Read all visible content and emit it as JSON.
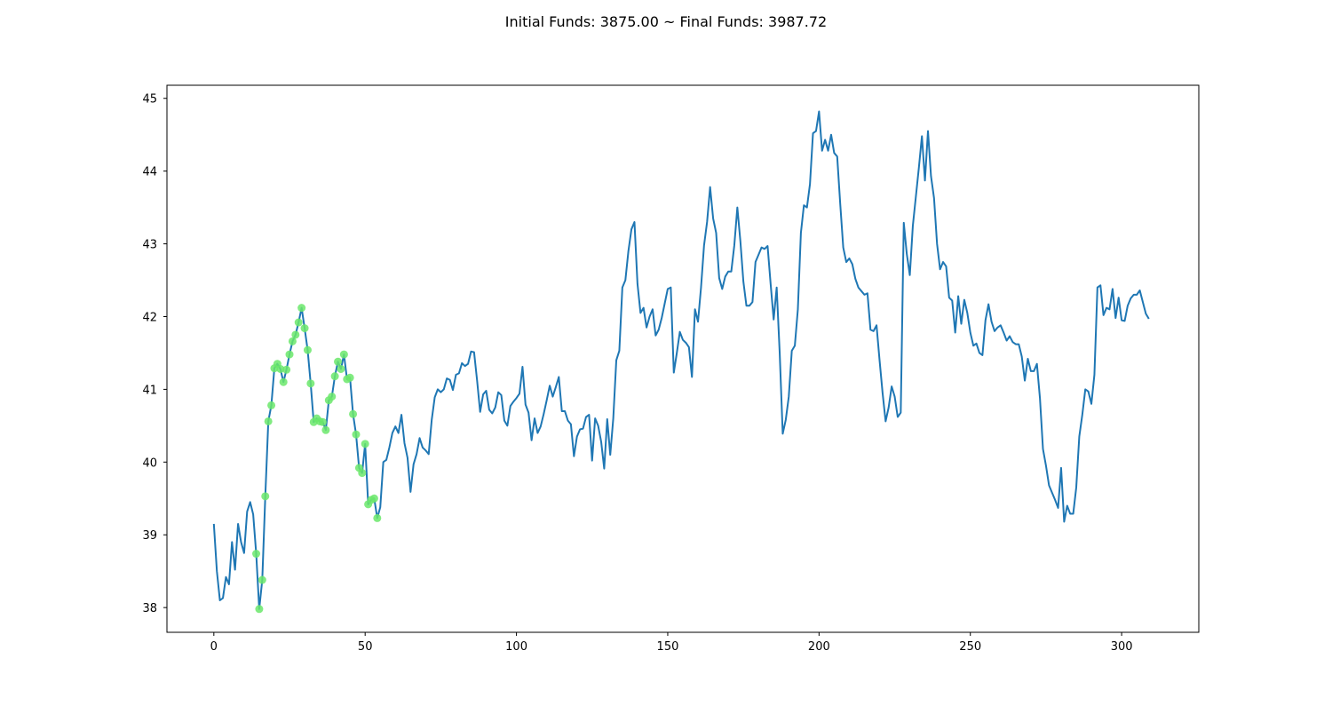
{
  "chart_data": {
    "type": "line",
    "title": "Initial Funds: 3875.00 ~ Final Funds: 3987.72",
    "xlabel": "",
    "ylabel": "",
    "xlim": [
      -15.5,
      325.5
    ],
    "ylim": [
      37.66,
      45.18
    ],
    "xticks": [
      0,
      50,
      100,
      150,
      200,
      250,
      300
    ],
    "yticks": [
      38,
      39,
      40,
      41,
      42,
      43,
      44,
      45
    ],
    "grid": false,
    "legend": "none",
    "series": [
      {
        "color": "#1f77b4",
        "x_start": 0,
        "values": [
          39.15,
          38.5,
          38.1,
          38.13,
          38.42,
          38.32,
          38.9,
          38.52,
          39.15,
          38.9,
          38.75,
          39.32,
          39.45,
          39.28,
          38.74,
          37.98,
          38.38,
          39.53,
          40.56,
          40.78,
          41.29,
          41.35,
          41.28,
          41.1,
          41.27,
          41.48,
          41.66,
          41.75,
          41.92,
          42.12,
          41.84,
          41.54,
          41.08,
          40.55,
          40.6,
          40.56,
          40.55,
          40.44,
          40.85,
          40.9,
          41.18,
          41.38,
          41.28,
          41.48,
          41.14,
          41.16,
          40.66,
          40.38,
          39.92,
          39.85,
          40.25,
          39.42,
          39.48,
          39.5,
          39.23,
          39.38,
          40.0,
          40.03,
          40.2,
          40.4,
          40.49,
          40.4,
          40.65,
          40.26,
          40.06,
          39.59,
          39.97,
          40.11,
          40.33,
          40.2,
          40.16,
          40.11,
          40.58,
          40.89,
          41.0,
          40.96,
          41.0,
          41.15,
          41.13,
          40.99,
          41.2,
          41.22,
          41.36,
          41.32,
          41.35,
          41.52,
          41.51,
          41.12,
          40.69,
          40.93,
          40.98,
          40.72,
          40.67,
          40.75,
          40.96,
          40.92,
          40.57,
          40.5,
          40.77,
          40.83,
          40.88,
          40.94,
          41.31,
          40.79,
          40.68,
          40.3,
          40.6,
          40.4,
          40.49,
          40.66,
          40.85,
          41.05,
          40.9,
          41.03,
          41.17,
          40.7,
          40.7,
          40.57,
          40.52,
          40.08,
          40.35,
          40.45,
          40.46,
          40.62,
          40.65,
          40.02,
          40.6,
          40.5,
          40.28,
          39.91,
          40.59,
          40.1,
          40.6,
          41.4,
          41.53,
          42.4,
          42.5,
          42.9,
          43.2,
          43.3,
          42.45,
          42.05,
          42.12,
          41.85,
          42.0,
          42.1,
          41.74,
          41.82,
          41.98,
          42.18,
          42.38,
          42.4,
          41.23,
          41.5,
          41.79,
          41.68,
          41.64,
          41.58,
          41.17,
          42.1,
          41.93,
          42.4,
          42.98,
          43.3,
          43.78,
          43.35,
          43.15,
          42.53,
          42.38,
          42.55,
          42.62,
          42.62,
          42.98,
          43.5,
          43.04,
          42.48,
          42.15,
          42.15,
          42.2,
          42.75,
          42.85,
          42.95,
          42.93,
          42.97,
          42.45,
          41.96,
          42.4,
          41.5,
          40.39,
          40.58,
          40.9,
          41.53,
          41.6,
          42.1,
          43.15,
          43.53,
          43.5,
          43.82,
          44.52,
          44.55,
          44.82,
          44.28,
          44.43,
          44.28,
          44.5,
          44.25,
          44.2,
          43.55,
          42.95,
          42.75,
          42.8,
          42.72,
          42.52,
          42.4,
          42.35,
          42.3,
          42.32,
          41.82,
          41.8,
          41.88,
          41.4,
          40.95,
          40.56,
          40.75,
          41.04,
          40.9,
          40.62,
          40.68,
          43.29,
          42.86,
          42.57,
          43.25,
          43.65,
          44.05,
          44.48,
          43.87,
          44.55,
          43.93,
          43.63,
          43.0,
          42.65,
          42.75,
          42.69,
          42.26,
          42.22,
          41.78,
          42.28,
          41.9,
          42.23,
          42.05,
          41.78,
          41.6,
          41.63,
          41.5,
          41.47,
          41.95,
          42.17,
          41.93,
          41.8,
          41.85,
          41.88,
          41.78,
          41.67,
          41.73,
          41.65,
          41.62,
          41.62,
          41.45,
          41.12,
          41.42,
          41.25,
          41.25,
          41.35,
          40.88,
          40.18,
          39.95,
          39.68,
          39.58,
          39.48,
          39.37,
          39.92,
          39.18,
          39.4,
          39.29,
          39.29,
          39.65,
          40.35,
          40.65,
          41.0,
          40.97,
          40.8,
          41.2,
          42.4,
          42.43,
          42.02,
          42.12,
          42.1,
          42.38,
          41.98,
          42.26,
          41.95,
          41.94,
          42.15,
          42.25,
          42.3,
          42.3,
          42.36,
          42.2,
          42.04,
          41.97
        ]
      }
    ],
    "markers": {
      "color": "#6be86b",
      "x": [
        14,
        15,
        16,
        17,
        18,
        19,
        20,
        21,
        22,
        23,
        24,
        25,
        26,
        27,
        28,
        29,
        30,
        31,
        32,
        33,
        34,
        35,
        36,
        37,
        38,
        39,
        40,
        41,
        42,
        43,
        44,
        45,
        46,
        47,
        48,
        49,
        50,
        51,
        52,
        53,
        54
      ],
      "values": [
        38.74,
        37.98,
        38.38,
        39.53,
        40.56,
        40.78,
        41.29,
        41.35,
        41.28,
        41.1,
        41.27,
        41.48,
        41.66,
        41.75,
        41.92,
        42.12,
        41.84,
        41.54,
        41.08,
        40.55,
        40.6,
        40.56,
        40.55,
        40.44,
        40.85,
        40.9,
        41.18,
        41.38,
        41.28,
        41.48,
        41.14,
        41.16,
        40.66,
        40.38,
        39.92,
        39.85,
        40.25,
        39.42,
        39.48,
        39.5,
        39.23
      ]
    }
  }
}
